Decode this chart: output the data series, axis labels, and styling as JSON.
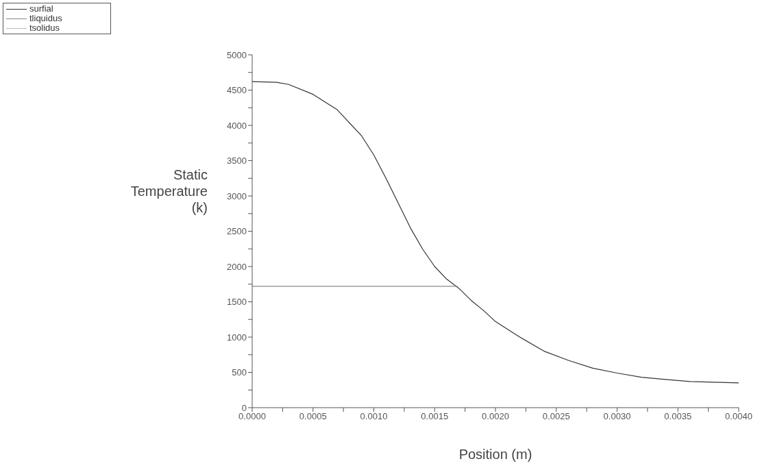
{
  "chart_data": {
    "type": "line",
    "xlabel": "Position (m)",
    "ylabel": "Static Temperature (k)",
    "legend": "top left",
    "grid": false,
    "marker": "none",
    "line_style": "solid",
    "xlim": [
      0,
      0.004
    ],
    "ylim": [
      0,
      5000
    ],
    "xticks": [
      {
        "value": 0,
        "label": "0.0000"
      },
      {
        "value": 0.00025,
        "label": null
      },
      {
        "value": 0.0005,
        "label": "0.0005"
      },
      {
        "value": 0.00075,
        "label": null
      },
      {
        "value": 0.001,
        "label": "0.0010"
      },
      {
        "value": 0.00125,
        "label": null
      },
      {
        "value": 0.0015,
        "label": "0.0015"
      },
      {
        "value": 0.00175,
        "label": null
      },
      {
        "value": 0.002,
        "label": "0.0020"
      },
      {
        "value": 0.00225,
        "label": null
      },
      {
        "value": 0.0025,
        "label": "0.0025"
      },
      {
        "value": 0.00275,
        "label": null
      },
      {
        "value": 0.003,
        "label": "0.0030"
      },
      {
        "value": 0.00325,
        "label": null
      },
      {
        "value": 0.0035,
        "label": "0.0035"
      },
      {
        "value": 0.00375,
        "label": null
      },
      {
        "value": 0.004,
        "label": "0.0040"
      }
    ],
    "yticks": [
      0,
      {
        "value": 250,
        "label": null
      },
      500,
      {
        "value": 750,
        "label": null
      },
      1000,
      {
        "value": 1250,
        "label": null
      },
      1500,
      {
        "value": 1750,
        "label": null
      },
      2000,
      {
        "value": 2250,
        "label": null
      },
      2500,
      {
        "value": 2750,
        "label": null
      },
      3000,
      {
        "value": 3250,
        "label": null
      },
      3500,
      {
        "value": 3750,
        "label": null
      },
      4000,
      {
        "value": 4250,
        "label": null
      },
      4500,
      {
        "value": 4750,
        "label": null
      },
      5000
    ],
    "series": [
      {
        "name": "surfial",
        "color": "#333333",
        "x": [
          0,
          0.0002,
          0.0003,
          0.0005,
          0.0007,
          0.0009,
          0.001,
          0.0011,
          0.0012,
          0.0013,
          0.0014,
          0.0015,
          0.0016,
          0.0017,
          0.0018,
          0.0019,
          0.002,
          0.0022,
          0.0024,
          0.0026,
          0.0028,
          0.003,
          0.0032,
          0.0034,
          0.0036,
          0.0038,
          0.004
        ],
        "values": [
          4620,
          4610,
          4580,
          4440,
          4220,
          3850,
          3580,
          3250,
          2900,
          2550,
          2250,
          2000,
          1820,
          1690,
          1520,
          1380,
          1220,
          1000,
          800,
          670,
          560,
          490,
          430,
          400,
          370,
          360,
          350
        ]
      },
      {
        "name": "tliquidus",
        "color": "#888888",
        "x": [
          0,
          0.00169
        ],
        "values": [
          1720,
          1720
        ]
      },
      {
        "name": "tsolidus",
        "color": "#bbbbbb"
      }
    ]
  }
}
